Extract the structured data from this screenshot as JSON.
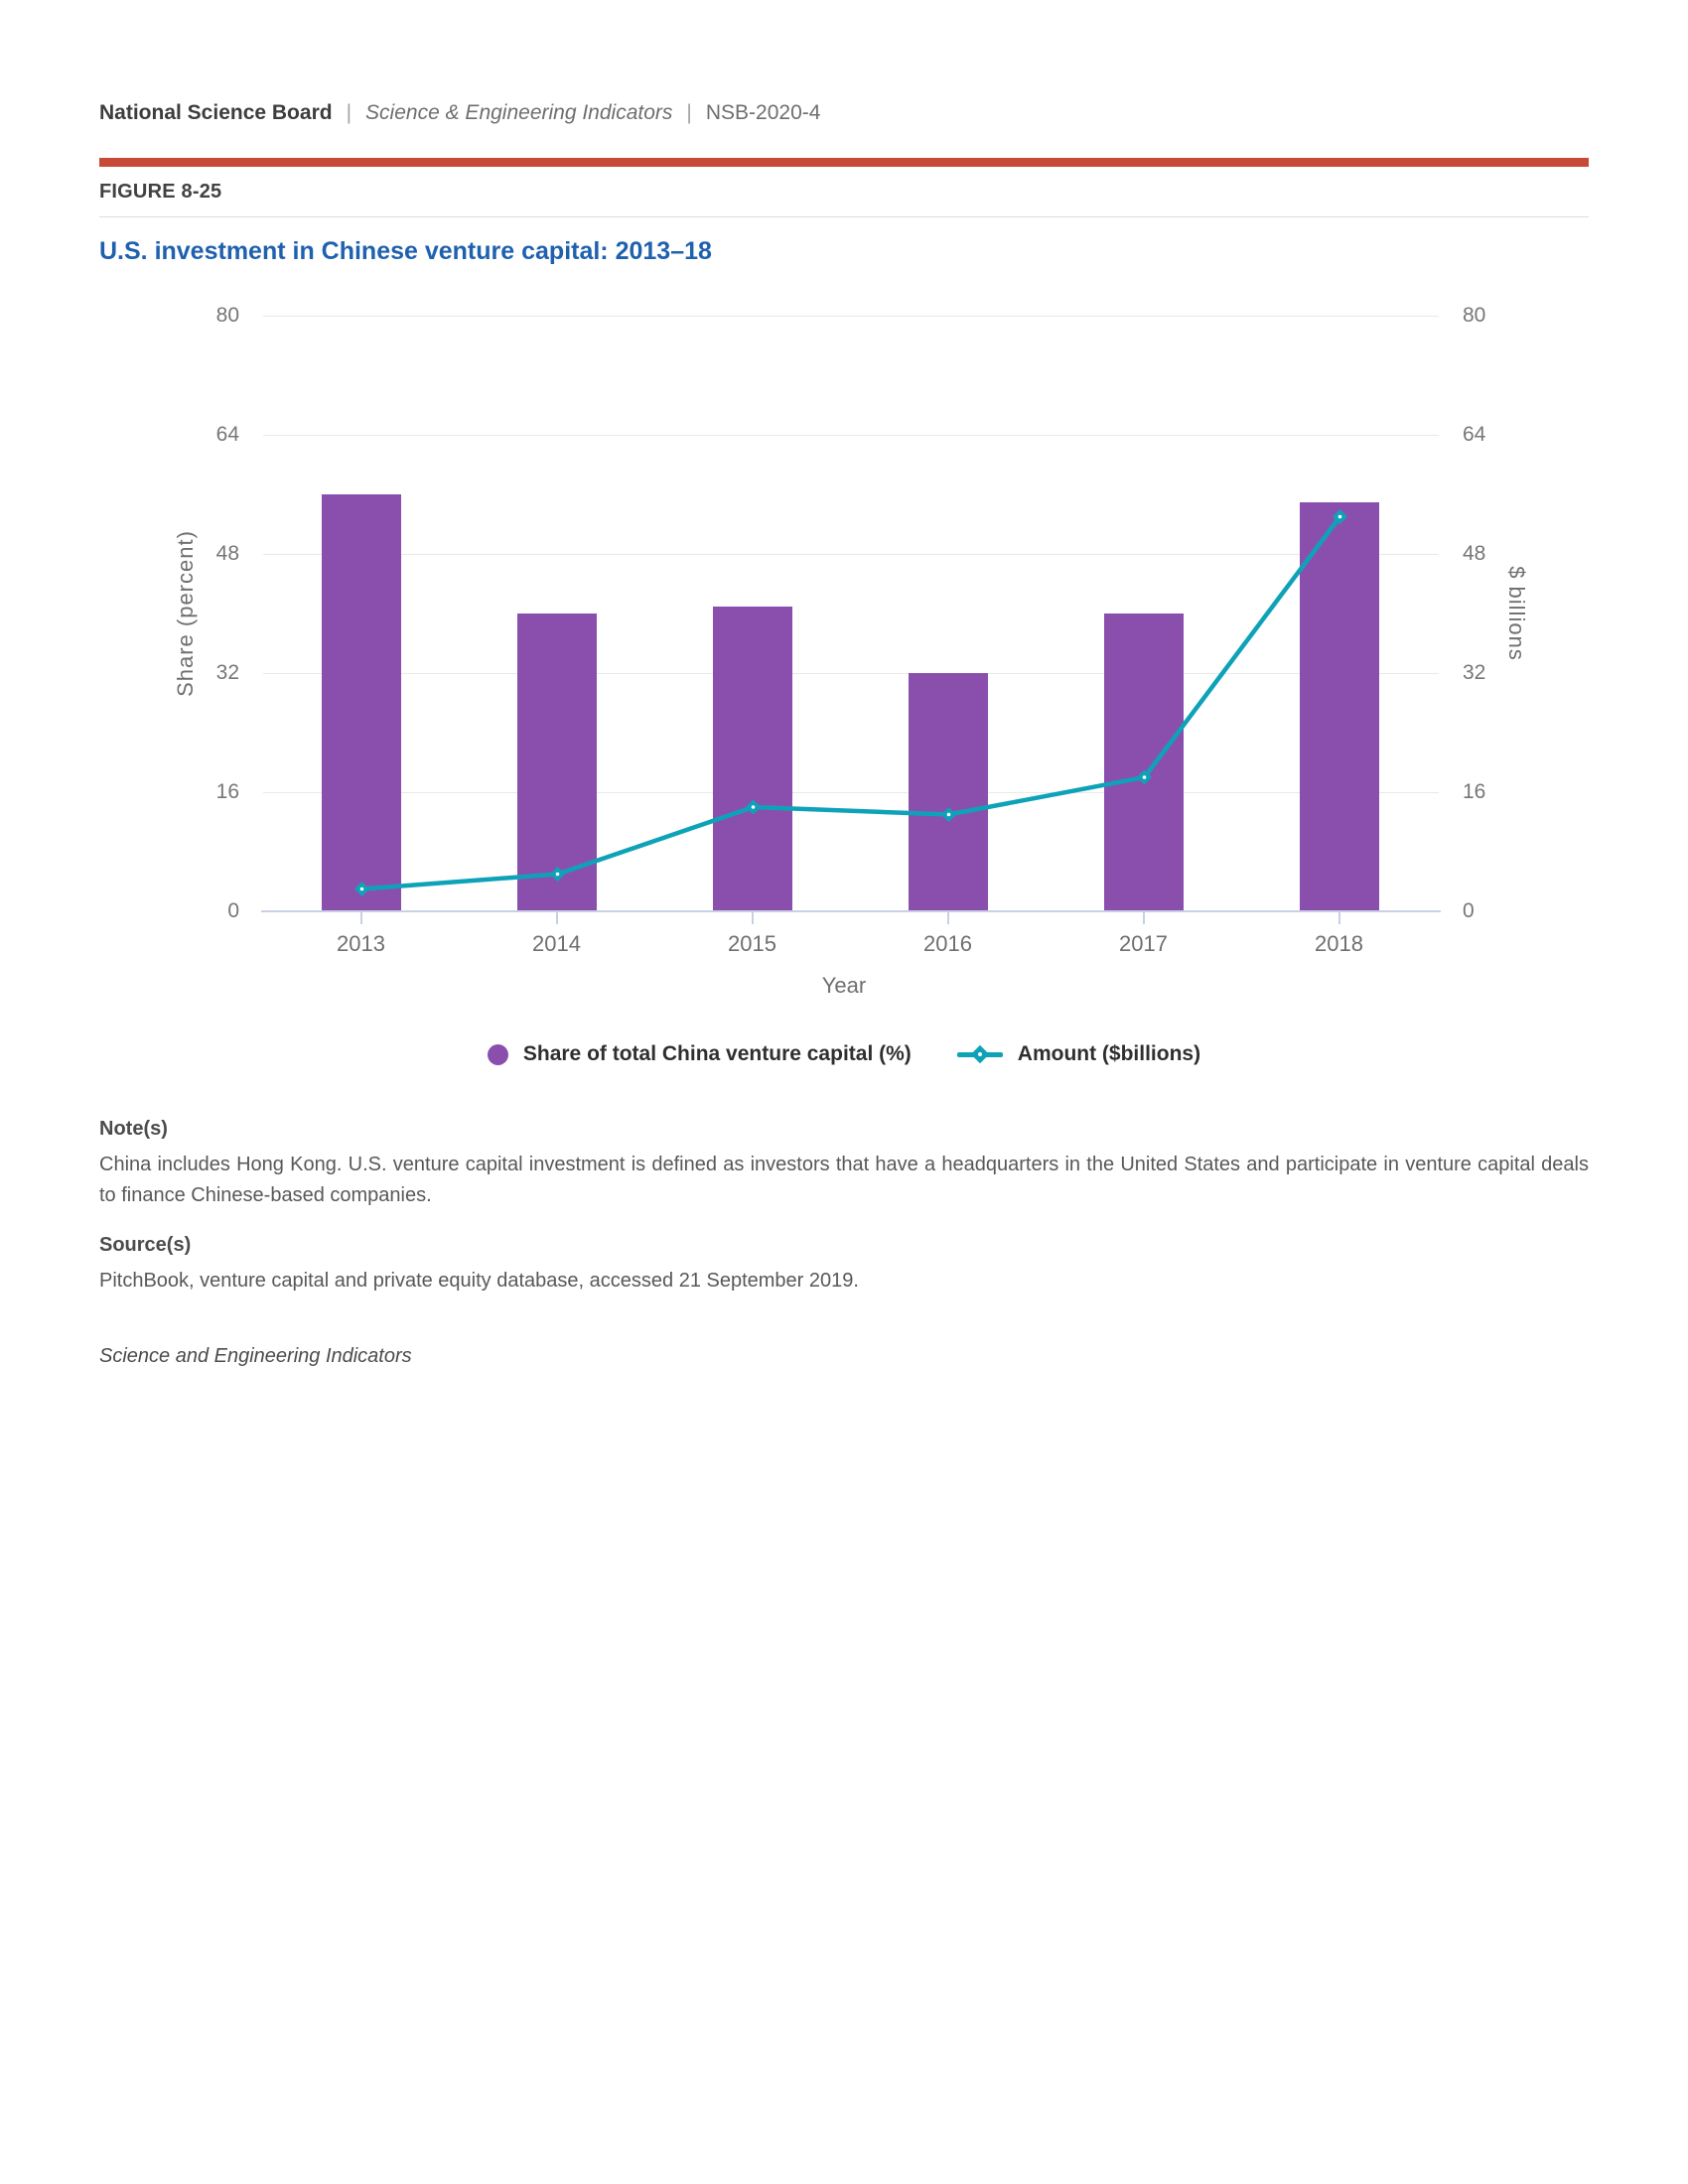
{
  "header": {
    "org": "National Science Board",
    "separator": "|",
    "publication": "Science & Engineering Indicators",
    "report_id": "NSB-2020-4"
  },
  "figure": {
    "label": "FIGURE 8-25",
    "title": "U.S. investment in Chinese venture capital: 2013–18"
  },
  "chart_data": {
    "type": "bar",
    "subtype": "combo-bar-line",
    "categories": [
      "2013",
      "2014",
      "2015",
      "2016",
      "2017",
      "2018"
    ],
    "series": [
      {
        "name": "Share of total China venture capital (%)",
        "type": "bar",
        "axis": "left",
        "color": "#8a4fad",
        "values": [
          56,
          40,
          41,
          32,
          40,
          55
        ]
      },
      {
        "name": "Amount ($billions)",
        "type": "line",
        "axis": "right",
        "color": "#0ea2b8",
        "values": [
          3,
          5,
          14,
          13,
          18,
          53
        ]
      }
    ],
    "left_axis": {
      "label": "Share (percent)",
      "ticks": [
        0,
        16,
        32,
        48,
        64,
        80
      ],
      "range": [
        0,
        80
      ]
    },
    "right_axis": {
      "label": "$ billions",
      "ticks": [
        0,
        16,
        32,
        48,
        64,
        80
      ],
      "range": [
        0,
        80
      ]
    },
    "x_axis": {
      "label": "Year"
    },
    "grid": true,
    "legend_position": "bottom"
  },
  "notes": {
    "heading": "Note(s)",
    "body": "China includes Hong Kong. U.S. venture capital investment is defined as investors that have a headquarters in the United States and participate in venture capital deals to finance Chinese-based companies."
  },
  "source": {
    "heading": "Source(s)",
    "body": "PitchBook, venture capital and private equity database, accessed 21 September 2019."
  },
  "footer": {
    "attribution": "Science and Engineering Indicators"
  },
  "colors": {
    "accent_red": "#c64a35",
    "title_blue": "#1f61ae",
    "bar_purple": "#8a4fad",
    "line_teal": "#0ea2b8",
    "axis_line": "#c9cfe6",
    "gridline": "#e9e9e9"
  }
}
